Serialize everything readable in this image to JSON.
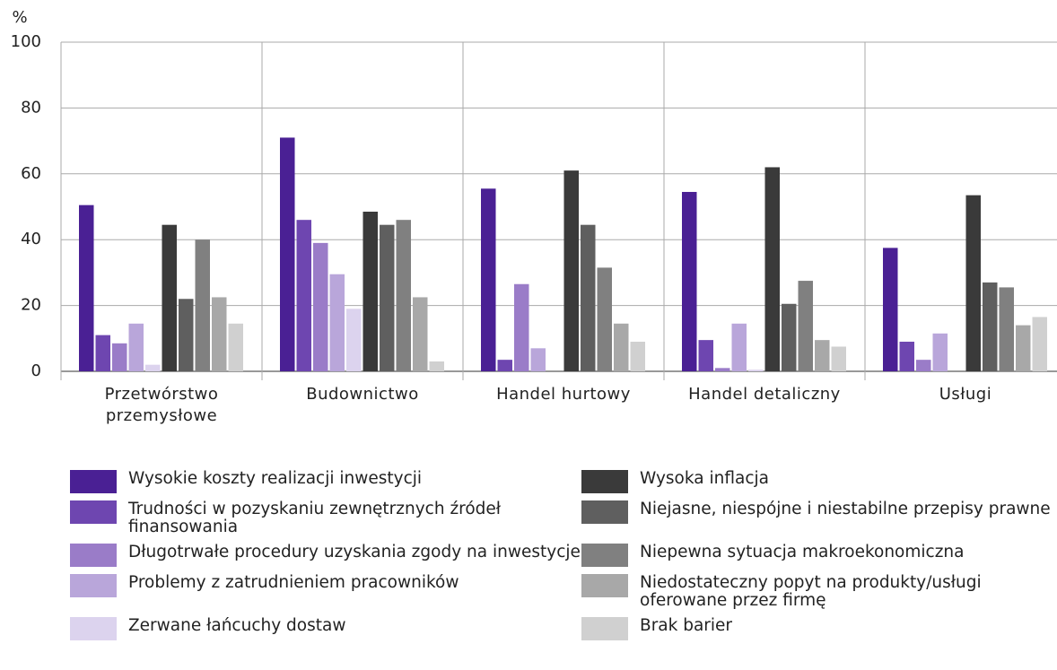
{
  "chart_data": {
    "type": "bar",
    "y_label": "%",
    "categories": [
      "Przetwórstwo przemysłowe",
      "Budownictwo",
      "Handel hurtowy",
      "Handel detaliczny",
      "Usługi"
    ],
    "ylim": [
      0,
      100
    ],
    "yticks": [
      0,
      20,
      40,
      60,
      80,
      100
    ],
    "grid": true,
    "series": [
      {
        "name": "Wysokie koszty realizacji inwestycji",
        "color": "#4a2094",
        "values": [
          50.5,
          71,
          55.5,
          54.5,
          37.5
        ]
      },
      {
        "name": "Trudności w pozyskaniu zewnętrznych źródeł finansowania",
        "color": "#6e46b0",
        "values": [
          11,
          46,
          3.5,
          9.5,
          9
        ]
      },
      {
        "name": "Długotrwałe procedury uzyskania zgody na inwestycje",
        "color": "#9a7cc8",
        "values": [
          8.5,
          39,
          26.5,
          1,
          3.5
        ]
      },
      {
        "name": "Problemy z zatrudnieniem pracowników",
        "color": "#b9a6da",
        "values": [
          14.5,
          29.5,
          7,
          14.5,
          11.5
        ]
      },
      {
        "name": "Zerwane łańcuchy dostaw",
        "color": "#dcd3ee",
        "values": [
          2,
          19,
          0,
          0.5,
          0
        ]
      },
      {
        "name": "Wysoka inflacja",
        "color": "#3a3a3a",
        "values": [
          44.5,
          48.5,
          61,
          62,
          53.5
        ]
      },
      {
        "name": "Niejasne, niespójne i niestabilne przepisy prawne",
        "color": "#5f5f5f",
        "values": [
          22,
          44.5,
          44.5,
          20.5,
          27
        ]
      },
      {
        "name": "Niepewna sytuacja makroekonomiczna",
        "color": "#808080",
        "values": [
          40,
          46,
          31.5,
          27.5,
          25.5
        ]
      },
      {
        "name": "Niedostateczny popyt na produkty/usługi oferowane przez firmę",
        "color": "#a8a8a8",
        "values": [
          22.5,
          22.5,
          14.5,
          9.5,
          14
        ]
      },
      {
        "name": "Brak barier",
        "color": "#d0d0d0",
        "values": [
          14.5,
          3,
          9,
          7.5,
          16.5
        ]
      }
    ]
  }
}
